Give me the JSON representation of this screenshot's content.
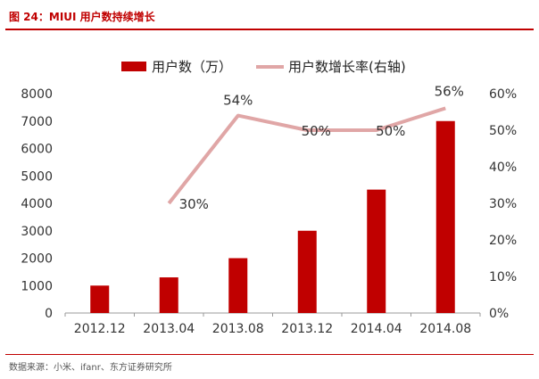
{
  "header": {
    "title": "图 24：MIUI 用户数持续增长"
  },
  "footer": {
    "source": "数据来源：小米、ifanr、东方证券研究所"
  },
  "colors": {
    "bar": "#c00000",
    "line": "#e0a6a6",
    "accent": "#c00000"
  },
  "chart_data": {
    "type": "bar",
    "title": "",
    "categories": [
      "2012.12",
      "2013.04",
      "2013.08",
      "2013.12",
      "2014.04",
      "2014.08"
    ],
    "series": [
      {
        "name": "用户数（万）",
        "type": "bar",
        "axis": "left",
        "values": [
          1000,
          1300,
          2000,
          3000,
          4500,
          7000
        ]
      },
      {
        "name": "用户数增长率(右轴)",
        "type": "line",
        "axis": "right",
        "values": [
          null,
          30,
          54,
          50,
          50,
          56
        ],
        "labels": [
          "",
          "30%",
          "54%",
          "50%",
          "50%",
          "56%"
        ]
      }
    ],
    "y_left": {
      "min": 0,
      "max": 8000,
      "ticks": [
        "0",
        "1000",
        "2000",
        "3000",
        "4000",
        "5000",
        "6000",
        "7000",
        "8000"
      ]
    },
    "y_right": {
      "min": 0,
      "max": 60,
      "ticks": [
        "0%",
        "10%",
        "20%",
        "30%",
        "40%",
        "50%",
        "60%"
      ]
    },
    "grid": false,
    "legend": "top"
  }
}
